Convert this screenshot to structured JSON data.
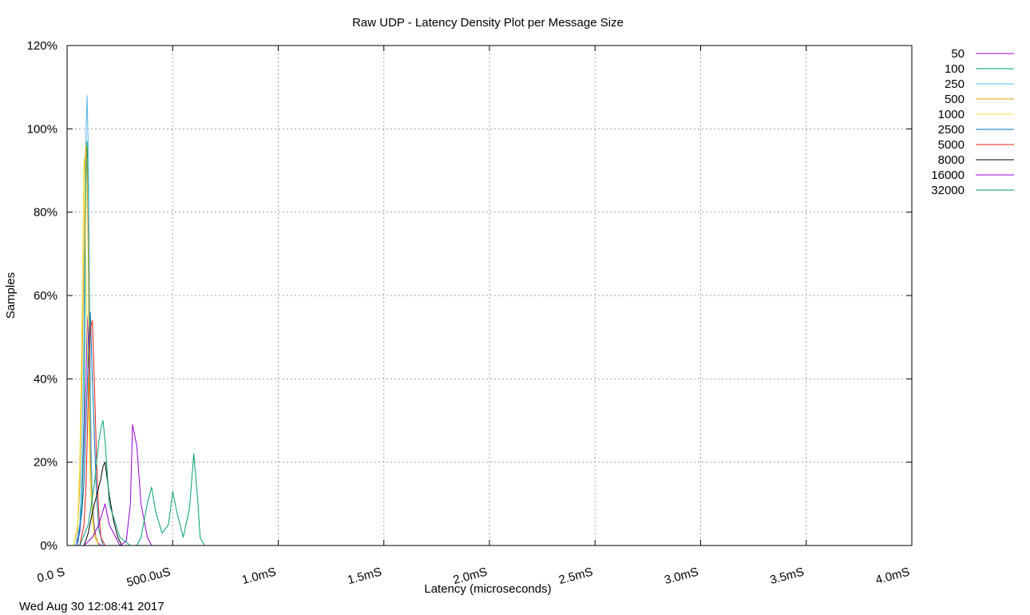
{
  "chart_data": {
    "type": "line",
    "title": "Raw UDP - Latency Density Plot per Message Size",
    "xlabel": "Latency (microseconds)",
    "ylabel": "Samples",
    "timestamp": "Wed Aug 30 12:08:41 2017",
    "xlim": [
      0,
      4000
    ],
    "ylim": [
      0,
      120
    ],
    "grid": true,
    "legend_position": "outside-right",
    "x_ticks": [
      {
        "value": 0,
        "label": "0.0 S"
      },
      {
        "value": 500,
        "label": "500.0uS"
      },
      {
        "value": 1000,
        "label": "1.0mS"
      },
      {
        "value": 1500,
        "label": "1.5mS"
      },
      {
        "value": 2000,
        "label": "2.0mS"
      },
      {
        "value": 2500,
        "label": "2.5mS"
      },
      {
        "value": 3000,
        "label": "3.0mS"
      },
      {
        "value": 3500,
        "label": "3.5mS"
      },
      {
        "value": 4000,
        "label": "4.0mS"
      }
    ],
    "y_ticks": [
      {
        "value": 0,
        "label": "0%"
      },
      {
        "value": 20,
        "label": "20%"
      },
      {
        "value": 40,
        "label": "40%"
      },
      {
        "value": 60,
        "label": "60%"
      },
      {
        "value": 80,
        "label": "80%"
      },
      {
        "value": 100,
        "label": "100%"
      },
      {
        "value": 120,
        "label": "120%"
      }
    ],
    "series": [
      {
        "name": "50",
        "color": "#9400d3",
        "x": [
          40,
          60,
          70,
          80,
          90,
          95,
          100,
          105,
          110,
          120,
          130,
          140,
          160
        ],
        "y": [
          0,
          3,
          10,
          25,
          40,
          55,
          50,
          40,
          25,
          10,
          4,
          1,
          0
        ]
      },
      {
        "name": "100",
        "color": "#009e73",
        "x": [
          50,
          70,
          80,
          85,
          90,
          95,
          100,
          105,
          110,
          120,
          130,
          150
        ],
        "y": [
          0,
          10,
          30,
          60,
          90,
          97,
          85,
          60,
          30,
          10,
          3,
          0
        ]
      },
      {
        "name": "250",
        "color": "#56b4e9",
        "x": [
          40,
          60,
          70,
          80,
          85,
          90,
          95,
          100,
          105,
          110,
          115,
          120,
          130,
          150
        ],
        "y": [
          0,
          5,
          20,
          50,
          80,
          100,
          108,
          95,
          70,
          40,
          20,
          10,
          3,
          0
        ]
      },
      {
        "name": "500",
        "color": "#e69f00",
        "x": [
          30,
          50,
          60,
          70,
          80,
          85,
          90,
          95,
          100,
          105,
          110,
          120,
          130,
          150
        ],
        "y": [
          0,
          4,
          15,
          40,
          70,
          92,
          96,
          90,
          70,
          40,
          20,
          8,
          3,
          0
        ]
      },
      {
        "name": "1000",
        "color": "#f0e442",
        "x": [
          30,
          50,
          60,
          70,
          75,
          80,
          85,
          90,
          100,
          110,
          120,
          130,
          150
        ],
        "y": [
          0,
          5,
          20,
          50,
          75,
          93,
          85,
          65,
          35,
          15,
          6,
          2,
          0
        ]
      },
      {
        "name": "2500",
        "color": "#0072b2",
        "x": [
          50,
          70,
          80,
          90,
          100,
          110,
          120,
          130,
          140,
          150,
          170
        ],
        "y": [
          0,
          8,
          15,
          30,
          45,
          56,
          40,
          25,
          12,
          4,
          0
        ]
      },
      {
        "name": "5000",
        "color": "#e51e10",
        "x": [
          60,
          80,
          90,
          100,
          110,
          120,
          130,
          140,
          150,
          160,
          180
        ],
        "y": [
          0,
          5,
          15,
          35,
          52,
          54,
          38,
          20,
          8,
          2,
          0
        ]
      },
      {
        "name": "8000",
        "color": "#000000",
        "x": [
          80,
          100,
          120,
          140,
          160,
          170,
          180,
          190,
          200,
          220,
          240,
          260
        ],
        "y": [
          0,
          3,
          8,
          12,
          16,
          19,
          20,
          16,
          12,
          6,
          2,
          0
        ]
      },
      {
        "name": "16000",
        "color": "#9400d3",
        "x": [
          80,
          120,
          150,
          180,
          200,
          250,
          280,
          300,
          310,
          330,
          350,
          380,
          400,
          420
        ],
        "y": [
          0,
          2,
          5,
          10,
          5,
          0,
          1,
          10,
          29,
          24,
          10,
          2,
          0,
          0
        ]
      },
      {
        "name": "32000",
        "color": "#009e73",
        "x": [
          60,
          100,
          130,
          150,
          160,
          170,
          180,
          200,
          250,
          300,
          330,
          350,
          380,
          400,
          420,
          450,
          480,
          500,
          520,
          550,
          580,
          600,
          620,
          630,
          650,
          660
        ],
        "y": [
          0,
          5,
          15,
          25,
          28,
          30,
          25,
          10,
          2,
          0,
          0,
          2,
          10,
          14,
          8,
          3,
          5,
          13,
          8,
          2,
          9,
          22,
          10,
          2,
          0,
          0
        ]
      }
    ]
  }
}
